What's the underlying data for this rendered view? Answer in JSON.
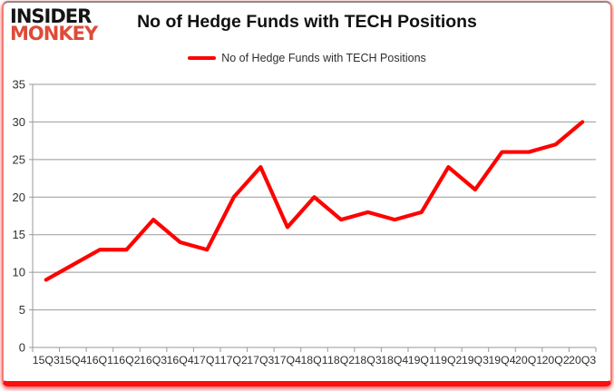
{
  "logo": {
    "line1": "INSIDER",
    "line2": "MONKEY"
  },
  "header": {
    "title": "No of Hedge Funds with TECH Positions"
  },
  "legend": {
    "label": "No of Hedge Funds with TECH Positions"
  },
  "colors": {
    "line": "#ff0000",
    "grid": "#999999",
    "axis_text": "#303030",
    "logo_red": "#dd4b39",
    "logo_black": "#141414",
    "frame_red": "#fb0f0f",
    "background": "#ffffff"
  },
  "chart_data": {
    "type": "line",
    "title": "No of Hedge Funds with TECH Positions",
    "categories": [
      "15Q3",
      "15Q4",
      "16Q1",
      "16Q2",
      "16Q3",
      "16Q4",
      "17Q1",
      "17Q2",
      "17Q3",
      "17Q4",
      "18Q1",
      "18Q2",
      "18Q3",
      "18Q4",
      "19Q1",
      "19Q2",
      "19Q3",
      "19Q4",
      "20Q1",
      "20Q2",
      "20Q3"
    ],
    "values": [
      9,
      11,
      13,
      13,
      17,
      14,
      13,
      20,
      24,
      16,
      20,
      17,
      18,
      17,
      18,
      24,
      21,
      26,
      26,
      27,
      30
    ],
    "series": [
      {
        "name": "No of Hedge Funds with TECH Positions",
        "values": [
          9,
          11,
          13,
          13,
          17,
          14,
          13,
          20,
          24,
          16,
          20,
          17,
          18,
          17,
          18,
          24,
          21,
          26,
          26,
          27,
          30
        ]
      }
    ],
    "xlabel": "",
    "ylabel": "",
    "ylim": [
      0,
      35
    ],
    "ytick_step": 5,
    "yticks": [
      0,
      5,
      10,
      15,
      20,
      25,
      30,
      35
    ],
    "grid": true,
    "legend_position": "top"
  }
}
